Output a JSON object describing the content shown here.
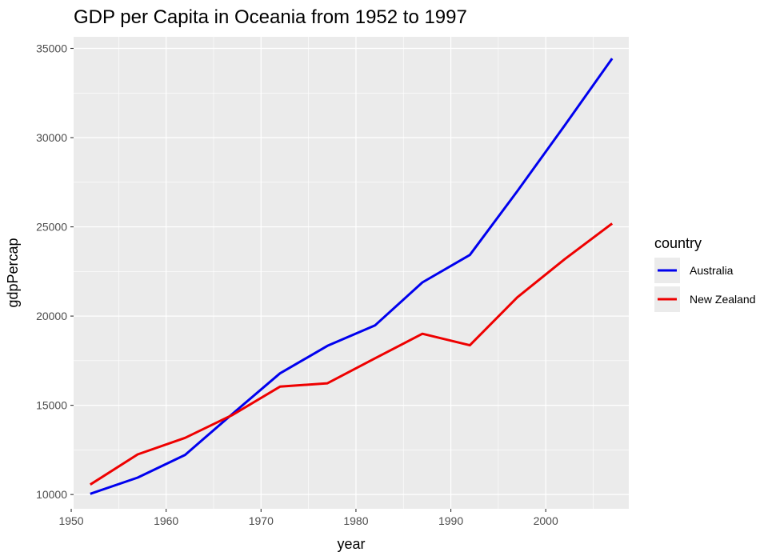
{
  "chart_data": {
    "type": "line",
    "title": "GDP per Capita in Oceania from 1952 to 1997",
    "xlabel": "year",
    "ylabel": "gdpPercap",
    "xlim": [
      1950.25,
      2008.75
    ],
    "ylim": [
      9200,
      35650
    ],
    "x_ticks": [
      1950,
      1960,
      1970,
      1980,
      1990,
      2000
    ],
    "y_ticks": [
      10000,
      15000,
      20000,
      25000,
      30000,
      35000
    ],
    "grid": true,
    "legend": {
      "title": "country",
      "placement": "right"
    },
    "x": [
      1952,
      1957,
      1962,
      1967,
      1972,
      1977,
      1982,
      1987,
      1992,
      1997,
      2002,
      2007
    ],
    "series": [
      {
        "name": "Australia",
        "color": "#0000ee",
        "values": [
          10040,
          10950,
          12220,
          14526,
          16789,
          18334,
          19477,
          21889,
          23425,
          26998,
          30688,
          34435
        ]
      },
      {
        "name": "New Zealand",
        "color": "#ee0000",
        "values": [
          10557,
          12247,
          13176,
          14464,
          16046,
          16234,
          17632,
          19007,
          18363,
          21050,
          23190,
          25185
        ]
      }
    ]
  }
}
